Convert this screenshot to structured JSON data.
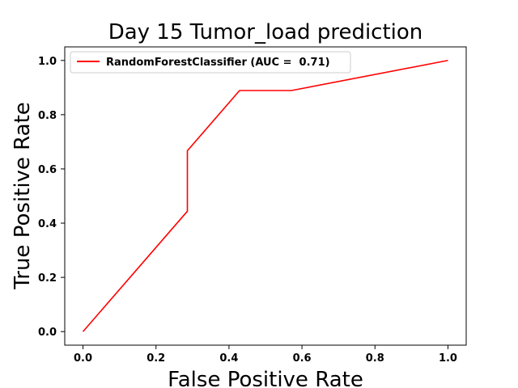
{
  "chart_data": {
    "type": "line",
    "title": "Day 15 Tumor_load prediction",
    "xlabel": "False Positive Rate",
    "ylabel": "True Positive Rate",
    "xlim": [
      -0.05,
      1.05
    ],
    "ylim": [
      -0.05,
      1.05
    ],
    "xticks": [
      "0.0",
      "0.2",
      "0.4",
      "0.6",
      "0.8",
      "1.0"
    ],
    "yticks": [
      "0.0",
      "0.2",
      "0.4",
      "0.6",
      "0.8",
      "1.0"
    ],
    "grid": false,
    "legend_position": "upper-left",
    "series": [
      {
        "name": "RandomForestClassifier (AUC =  0.71)",
        "color": "#ff0000",
        "x": [
          0.0,
          0.286,
          0.286,
          0.429,
          0.571,
          1.0
        ],
        "y": [
          0.0,
          0.444,
          0.667,
          0.889,
          0.889,
          1.0
        ]
      }
    ]
  }
}
